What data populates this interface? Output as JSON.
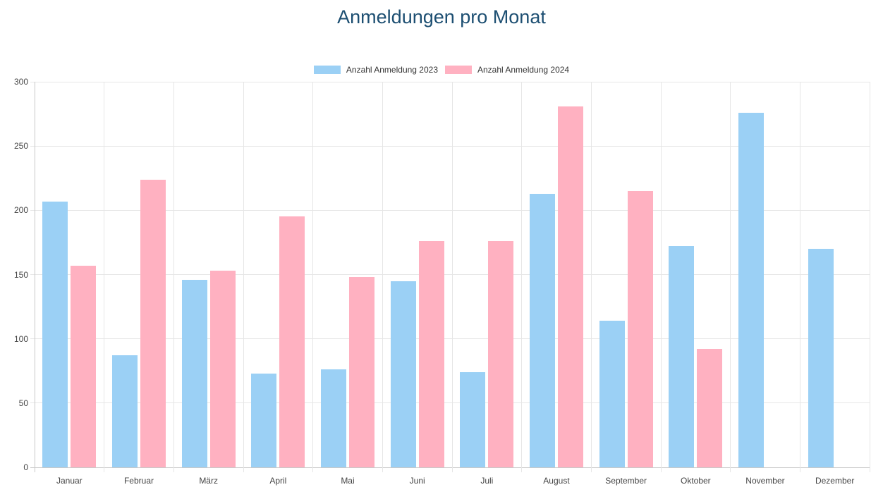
{
  "chart_data": {
    "type": "bar",
    "title": "Anmeldungen pro Monat",
    "title_color": "#1d4f72",
    "categories": [
      "Januar",
      "Februar",
      "März",
      "April",
      "Mai",
      "Juni",
      "Juli",
      "August",
      "September",
      "Oktober",
      "November",
      "Dezember"
    ],
    "series": [
      {
        "name": "Anzahl Anmeldung 2023",
        "color": "#9bd0f5",
        "values": [
          207,
          87,
          146,
          73,
          76,
          145,
          74,
          213,
          114,
          172,
          276,
          170
        ]
      },
      {
        "name": "Anzahl Anmeldung 2024",
        "color": "#ffb1c1",
        "values": [
          157,
          224,
          153,
          195,
          148,
          176,
          176,
          281,
          215,
          92,
          null,
          null
        ]
      }
    ],
    "xlabel": "",
    "ylabel": "",
    "ylim": [
      0,
      300
    ],
    "ytick_step": 50,
    "grid": true,
    "legend_position": "top"
  }
}
